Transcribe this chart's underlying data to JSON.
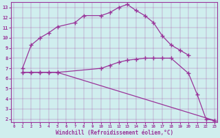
{
  "line1_x": [
    1,
    2,
    3,
    4,
    5,
    7,
    8,
    10,
    11,
    12,
    13,
    14,
    15,
    16,
    17,
    18,
    19,
    20
  ],
  "line1_y": [
    7.0,
    9.3,
    10.0,
    10.5,
    11.1,
    11.5,
    12.2,
    12.2,
    12.5,
    13.0,
    13.3,
    12.7,
    12.2,
    11.5,
    10.2,
    9.3,
    8.8,
    8.3
  ],
  "line2_x": [
    1,
    2,
    3,
    4,
    5,
    10,
    11,
    12,
    13,
    14,
    15,
    16,
    17,
    18,
    20,
    21,
    22,
    23
  ],
  "line2_y": [
    6.6,
    6.6,
    6.6,
    6.6,
    6.6,
    7.0,
    7.3,
    7.6,
    7.8,
    7.9,
    8.0,
    8.0,
    8.0,
    8.0,
    6.5,
    4.4,
    2.0,
    1.85
  ],
  "line3_x": [
    1,
    2,
    3,
    4,
    5,
    23
  ],
  "line3_y": [
    6.6,
    6.6,
    6.6,
    6.6,
    6.6,
    1.85
  ],
  "color": "#993399",
  "bg_color": "#d0eeee",
  "xlabel": "Windchill (Refroidissement éolien,°C)",
  "ylabel_ticks": [
    2,
    3,
    4,
    5,
    6,
    7,
    8,
    9,
    10,
    11,
    12,
    13
  ],
  "xlabel_ticks": [
    0,
    1,
    2,
    3,
    4,
    5,
    6,
    7,
    8,
    9,
    10,
    11,
    12,
    13,
    14,
    15,
    16,
    17,
    18,
    19,
    20,
    21,
    22,
    23
  ],
  "xlim": [
    -0.3,
    23.3
  ],
  "ylim": [
    1.7,
    13.5
  ],
  "marker": "+"
}
